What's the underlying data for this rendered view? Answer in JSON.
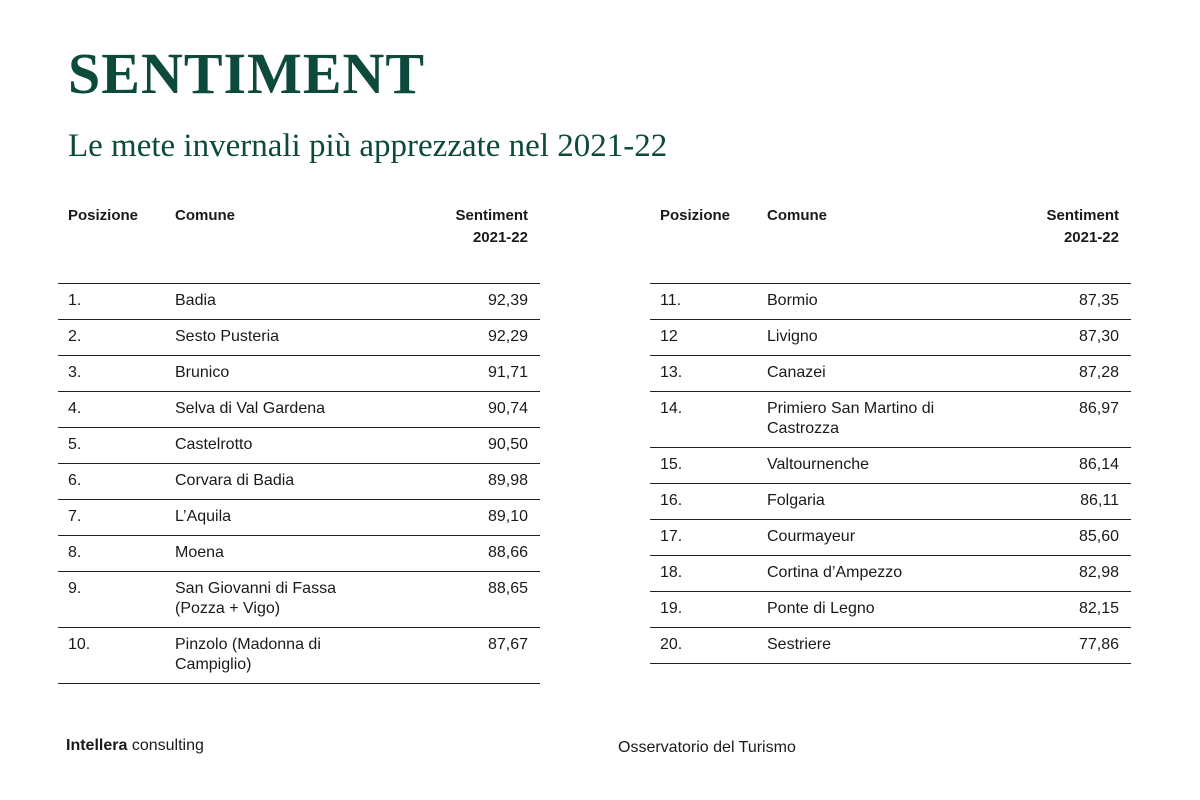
{
  "header": {
    "title": "SENTIMENT",
    "subtitle": "Le mete invernali più apprezzate nel 2021-22"
  },
  "tables": [
    {
      "columns": [
        "Posizione",
        "Comune",
        "Sentiment 2021-22"
      ],
      "rows": [
        [
          "1.",
          "Badia",
          "92,39"
        ],
        [
          "2.",
          "Sesto Pusteria",
          "92,29"
        ],
        [
          "3.",
          "Brunico",
          "91,71"
        ],
        [
          "4.",
          "Selva di Val Gardena",
          "90,74"
        ],
        [
          "5.",
          "Castelrotto",
          "90,50"
        ],
        [
          "6.",
          "Corvara di Badia",
          "89,98"
        ],
        [
          "7.",
          "L’Aquila",
          "89,10"
        ],
        [
          "8.",
          "Moena",
          "88,66"
        ],
        [
          "9.",
          "San Giovanni di Fassa (Pozza + Vigo)",
          "88,65"
        ],
        [
          "10.",
          "Pinzolo (Madonna di Campiglio)",
          "87,67"
        ]
      ]
    },
    {
      "columns": [
        "Posizione",
        "Comune",
        "Sentiment 2021-22"
      ],
      "rows": [
        [
          "11.",
          "Bormio",
          "87,35"
        ],
        [
          "12",
          "Livigno",
          "87,30"
        ],
        [
          "13.",
          "Canazei",
          "87,28"
        ],
        [
          "14.",
          "Primiero San Martino di Castrozza",
          "86,97"
        ],
        [
          "15.",
          "Valtournenche",
          "86,14"
        ],
        [
          "16.",
          "Folgaria",
          "86,11"
        ],
        [
          "17.",
          "Courmayeur",
          "85,60"
        ],
        [
          "18.",
          "Cortina d’Ampezzo",
          "82,98"
        ],
        [
          "19.",
          "Ponte di Legno",
          "82,15"
        ],
        [
          "20.",
          "Sestriere",
          "77,86"
        ]
      ]
    }
  ],
  "footer": {
    "brand": "Intellera",
    "brand_suffix": "consulting",
    "source": "Osservatorio del Turismo"
  }
}
